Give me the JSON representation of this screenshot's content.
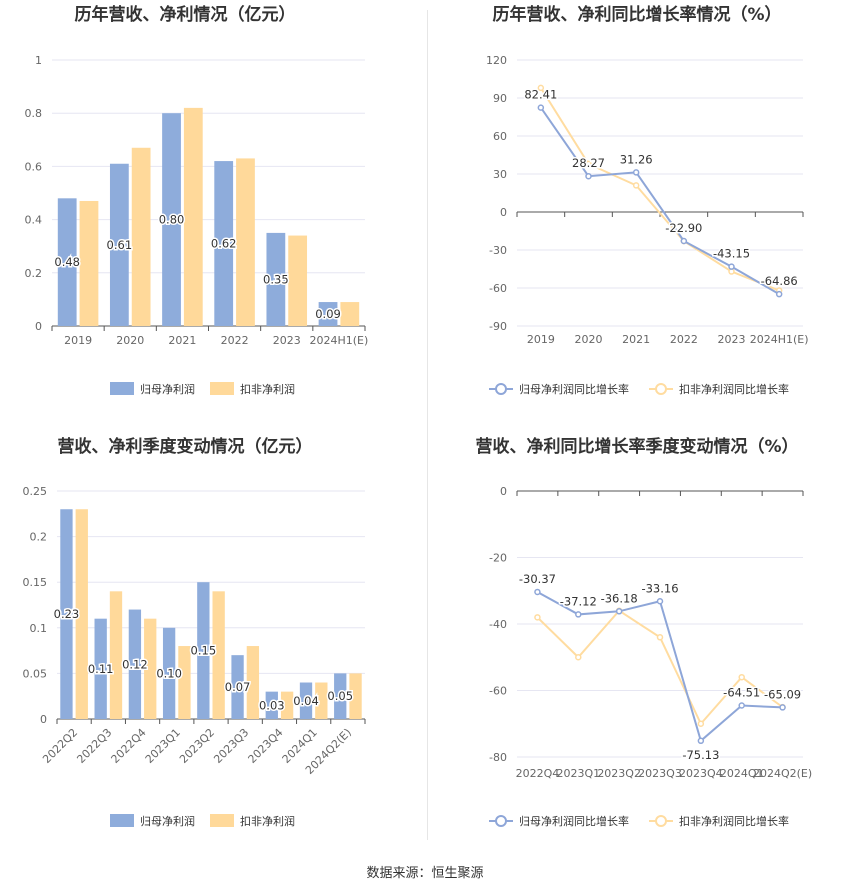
{
  "source_label": "数据来源：恒生聚源",
  "colors": {
    "blue": "#8EACDB",
    "yellow": "#FFD99A",
    "blue_line": "#8EA6D8",
    "yellow_line": "#FFDCA0",
    "grid": "#E6E6F2",
    "axis": "#555555"
  },
  "chart_data": [
    {
      "type": "bar",
      "title": "历年营收、净利情况（亿元）",
      "categories": [
        "2019",
        "2020",
        "2021",
        "2022",
        "2023",
        "2024H1(E)"
      ],
      "series": [
        {
          "name": "归母净利润",
          "values": [
            0.48,
            0.61,
            0.8,
            0.62,
            0.35,
            0.09
          ]
        },
        {
          "name": "扣非净利润",
          "values": [
            0.47,
            0.67,
            0.82,
            0.63,
            0.34,
            0.09
          ]
        }
      ],
      "data_labels": [
        "0.48",
        "0.61",
        "0.80",
        "0.62",
        "0.35",
        "0.09"
      ],
      "y_ticks": [
        "0",
        "0.2",
        "0.4",
        "0.6",
        "0.8",
        "1"
      ],
      "ylim": [
        0,
        1
      ],
      "legend_position": "bottom"
    },
    {
      "type": "line",
      "title": "历年营收、净利同比增长率情况（%）",
      "categories": [
        "2019",
        "2020",
        "2021",
        "2022",
        "2023",
        "2024H1(E)"
      ],
      "series": [
        {
          "name": "归母净利润同比增长率",
          "values": [
            82.41,
            28.27,
            31.26,
            -22.9,
            -43.15,
            -64.86
          ]
        },
        {
          "name": "扣非净利润同比增长率",
          "values": [
            98,
            38,
            21,
            -23,
            -47,
            -62
          ]
        }
      ],
      "data_labels": [
        "82.41",
        "28.27",
        "31.26",
        "-22.90",
        "-43.15",
        "-64.86"
      ],
      "y_ticks": [
        "-90",
        "-60",
        "-30",
        "0",
        "30",
        "60",
        "90",
        "120"
      ],
      "ylim": [
        -90,
        120
      ],
      "legend_position": "bottom"
    },
    {
      "type": "bar",
      "title": "营收、净利季度变动情况（亿元）",
      "categories": [
        "2022Q2",
        "2022Q3",
        "2022Q4",
        "2023Q1",
        "2023Q2",
        "2023Q3",
        "2023Q4",
        "2024Q1",
        "2024Q2(E)"
      ],
      "series": [
        {
          "name": "归母净利润",
          "values": [
            0.23,
            0.11,
            0.12,
            0.1,
            0.15,
            0.07,
            0.03,
            0.04,
            0.05
          ]
        },
        {
          "name": "扣非净利润",
          "values": [
            0.23,
            0.14,
            0.11,
            0.08,
            0.14,
            0.08,
            0.03,
            0.04,
            0.05
          ]
        }
      ],
      "data_labels": [
        "0.23",
        "0.11",
        "0.12",
        "0.10",
        "0.15",
        "0.07",
        "0.03",
        "0.04",
        "0.05"
      ],
      "y_ticks": [
        "0",
        "0.05",
        "0.1",
        "0.15",
        "0.2",
        "0.25"
      ],
      "ylim": [
        0,
        0.25
      ],
      "legend_position": "bottom"
    },
    {
      "type": "line",
      "title": "营收、净利同比增长率季度变动情况（%）",
      "categories": [
        "2022Q4",
        "2023Q1",
        "2023Q2",
        "2023Q3",
        "2023Q4",
        "2024Q1",
        "2024Q2(E)"
      ],
      "series": [
        {
          "name": "归母净利润同比增长率",
          "values": [
            -30.37,
            -37.12,
            -36.18,
            -33.16,
            -75.13,
            -64.51,
            -65.09
          ]
        },
        {
          "name": "扣非净利润同比增长率",
          "values": [
            -38,
            -50,
            -36,
            -44,
            -70,
            -56,
            -65
          ]
        }
      ],
      "data_labels": [
        "-30.37",
        "-37.12",
        "-36.18",
        "-33.16",
        "-75.13",
        "-64.51",
        "-65.09"
      ],
      "y_ticks": [
        "-80",
        "-60",
        "-40",
        "-20",
        "0"
      ],
      "ylim": [
        -80,
        0
      ],
      "legend_position": "bottom"
    }
  ]
}
